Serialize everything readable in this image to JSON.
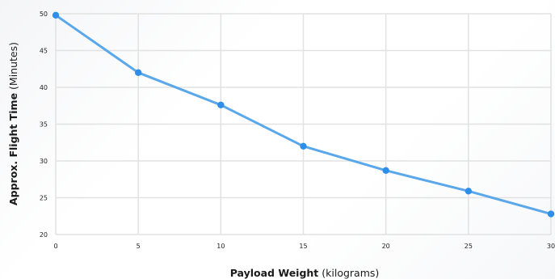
{
  "chart_data": {
    "type": "line",
    "x": [
      0,
      5,
      10,
      15,
      20,
      25,
      30
    ],
    "series": [
      {
        "values": [
          49.8,
          42.0,
          37.6,
          32.0,
          28.7,
          25.9,
          22.8
        ]
      }
    ],
    "xlabel_bold": "Payload Weight",
    "xlabel_unit": "(kilograms)",
    "ylabel_bold": "Approx. Flight Time",
    "ylabel_unit": "(Minutes)",
    "xlim": [
      0,
      30
    ],
    "ylim": [
      20,
      50
    ],
    "xticks": [
      0,
      5,
      10,
      15,
      20,
      25,
      30
    ],
    "yticks": [
      20,
      25,
      30,
      35,
      40,
      45,
      50
    ],
    "grid": true,
    "line_color": "#5aa8ea",
    "point_color": "#2f8fe8",
    "grid_color": "#e2e2e2"
  }
}
